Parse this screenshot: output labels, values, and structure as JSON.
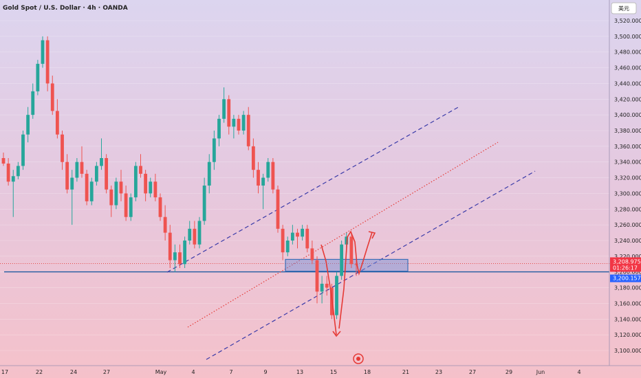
{
  "chart_data": {
    "type": "candlestick",
    "title": "Gold Spot / U.S. Dollar · 4h · OANDA",
    "currency_label": "美元",
    "y_ticks": [
      3100,
      3120,
      3140,
      3160,
      3180,
      3200,
      3220,
      3240,
      3260,
      3280,
      3300,
      3320,
      3340,
      3360,
      3380,
      3400,
      3420,
      3440,
      3460,
      3480,
      3500,
      3520
    ],
    "ylim": [
      3090,
      3530
    ],
    "x_ticks": [
      "17",
      "22",
      "24",
      "27",
      "May",
      "4",
      "7",
      "9",
      "13",
      "15",
      "18",
      "21",
      "23",
      "27",
      "29",
      "Jun",
      "4"
    ],
    "colors": {
      "up": "#26a69a",
      "down": "#ef5350",
      "support": "#1e5aa0",
      "channel": "#3a3aa8",
      "trend": "#e53935",
      "box": "#3b6fb8",
      "price_badge": "#f23645",
      "support_badge": "#2962ff"
    },
    "price_label": "3,208.975",
    "countdown_label": "01:26:17",
    "support_label": "3,200.157",
    "support_level": 3200.157,
    "current_price": 3208.975,
    "box_zone": {
      "from": 3201,
      "to": 3216
    },
    "candles": [
      [
        3345,
        3352,
        3335,
        3338
      ],
      [
        3338,
        3345,
        3310,
        3315
      ],
      [
        3315,
        3330,
        3270,
        3322
      ],
      [
        3322,
        3340,
        3318,
        3335
      ],
      [
        3335,
        3380,
        3330,
        3375
      ],
      [
        3375,
        3410,
        3365,
        3400
      ],
      [
        3400,
        3440,
        3395,
        3430
      ],
      [
        3430,
        3470,
        3425,
        3465
      ],
      [
        3465,
        3500,
        3460,
        3495
      ],
      [
        3495,
        3500,
        3430,
        3440
      ],
      [
        3440,
        3450,
        3400,
        3405
      ],
      [
        3405,
        3420,
        3370,
        3375
      ],
      [
        3375,
        3380,
        3330,
        3340
      ],
      [
        3340,
        3350,
        3300,
        3305
      ],
      [
        3305,
        3330,
        3260,
        3320
      ],
      [
        3320,
        3345,
        3315,
        3340
      ],
      [
        3340,
        3360,
        3320,
        3325
      ],
      [
        3325,
        3330,
        3285,
        3290
      ],
      [
        3290,
        3320,
        3285,
        3315
      ],
      [
        3315,
        3340,
        3310,
        3335
      ],
      [
        3335,
        3370,
        3330,
        3345
      ],
      [
        3345,
        3350,
        3300,
        3305
      ],
      [
        3305,
        3310,
        3270,
        3285
      ],
      [
        3285,
        3320,
        3280,
        3315
      ],
      [
        3315,
        3330,
        3290,
        3300
      ],
      [
        3300,
        3310,
        3265,
        3270
      ],
      [
        3270,
        3300,
        3265,
        3295
      ],
      [
        3295,
        3340,
        3290,
        3335
      ],
      [
        3335,
        3350,
        3320,
        3325
      ],
      [
        3325,
        3330,
        3290,
        3300
      ],
      [
        3300,
        3320,
        3295,
        3315
      ],
      [
        3315,
        3325,
        3290,
        3295
      ],
      [
        3295,
        3300,
        3265,
        3270
      ],
      [
        3270,
        3285,
        3240,
        3250
      ],
      [
        3250,
        3260,
        3205,
        3215
      ],
      [
        3215,
        3235,
        3200,
        3225
      ],
      [
        3225,
        3235,
        3205,
        3210
      ],
      [
        3210,
        3245,
        3205,
        3240
      ],
      [
        3240,
        3265,
        3235,
        3255
      ],
      [
        3255,
        3265,
        3230,
        3235
      ],
      [
        3235,
        3270,
        3230,
        3265
      ],
      [
        3265,
        3320,
        3260,
        3310
      ],
      [
        3310,
        3350,
        3300,
        3340
      ],
      [
        3340,
        3380,
        3330,
        3370
      ],
      [
        3370,
        3400,
        3360,
        3395
      ],
      [
        3395,
        3435,
        3390,
        3420
      ],
      [
        3420,
        3425,
        3375,
        3385
      ],
      [
        3385,
        3400,
        3370,
        3395
      ],
      [
        3395,
        3400,
        3375,
        3380
      ],
      [
        3380,
        3405,
        3375,
        3400
      ],
      [
        3400,
        3410,
        3355,
        3360
      ],
      [
        3360,
        3370,
        3320,
        3330
      ],
      [
        3330,
        3340,
        3300,
        3310
      ],
      [
        3310,
        3325,
        3280,
        3320
      ],
      [
        3320,
        3345,
        3315,
        3340
      ],
      [
        3340,
        3345,
        3300,
        3305
      ],
      [
        3305,
        3310,
        3250,
        3255
      ],
      [
        3255,
        3260,
        3215,
        3225
      ],
      [
        3225,
        3245,
        3220,
        3240
      ],
      [
        3240,
        3260,
        3235,
        3250
      ],
      [
        3250,
        3255,
        3230,
        3245
      ],
      [
        3245,
        3260,
        3240,
        3255
      ],
      [
        3255,
        3260,
        3225,
        3230
      ],
      [
        3230,
        3240,
        3210,
        3215
      ],
      [
        3215,
        3220,
        3160,
        3175
      ],
      [
        3175,
        3195,
        3160,
        3185
      ],
      [
        3185,
        3195,
        3170,
        3180
      ],
      [
        3180,
        3185,
        3140,
        3145
      ],
      [
        3145,
        3200,
        3140,
        3195
      ],
      [
        3195,
        3240,
        3190,
        3235
      ],
      [
        3235,
        3250,
        3225,
        3245
      ],
      [
        3245,
        3250,
        3205,
        3210
      ],
      [
        3210,
        3215,
        3195,
        3209
      ]
    ]
  }
}
